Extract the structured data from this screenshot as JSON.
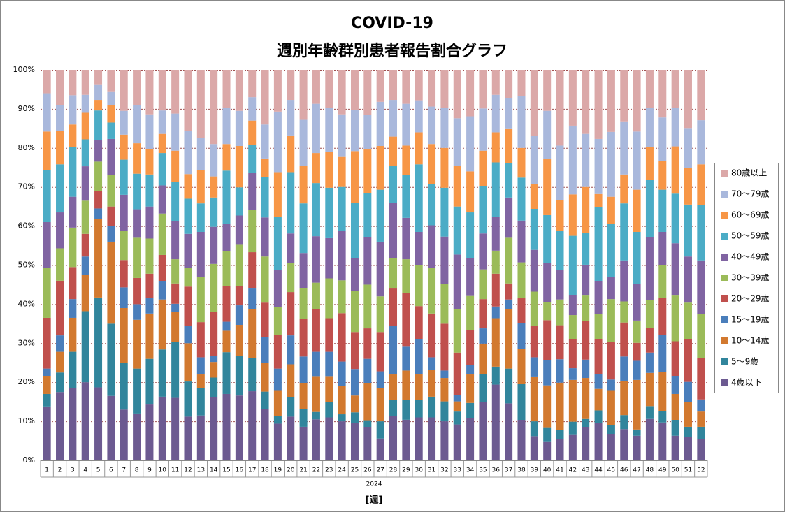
{
  "chart_data": {
    "type": "stacked_bar_percent",
    "title": "COVID-19",
    "subtitle": "週別年齢群別患者報告割合グラフ",
    "x_label": "[週]",
    "x_group_label": "2024",
    "categories": [
      "1",
      "2",
      "3",
      "4",
      "5",
      "6",
      "7",
      "8",
      "9",
      "10",
      "11",
      "12",
      "13",
      "14",
      "15",
      "16",
      "17",
      "18",
      "19",
      "20",
      "21",
      "22",
      "23",
      "24",
      "25",
      "26",
      "27",
      "28",
      "29",
      "30",
      "31",
      "32",
      "33",
      "34",
      "35",
      "36",
      "37",
      "38",
      "39",
      "40",
      "41",
      "42",
      "43",
      "44",
      "45",
      "46",
      "47",
      "48",
      "49",
      "50",
      "51",
      "52"
    ],
    "ylim": [
      0,
      100
    ],
    "yticks": [
      {
        "value": 0,
        "label": "0%"
      },
      {
        "value": 10,
        "label": "10%"
      },
      {
        "value": 20,
        "label": "20%"
      },
      {
        "value": 30,
        "label": "30%"
      },
      {
        "value": 40,
        "label": "40%"
      },
      {
        "value": 50,
        "label": "50%"
      },
      {
        "value": 60,
        "label": "60%"
      },
      {
        "value": 70,
        "label": "70%"
      },
      {
        "value": 80,
        "label": "80%"
      },
      {
        "value": 90,
        "label": "90%"
      },
      {
        "value": 100,
        "label": "100%"
      }
    ],
    "grid": true,
    "legend": "right",
    "series": [
      {
        "name": "4歳以下",
        "color": "#6c5a91",
        "values": [
          13.8,
          17.5,
          18.5,
          20,
          18.7,
          16.5,
          13,
          12,
          14.3,
          16.3,
          16,
          11.2,
          11.5,
          16.2,
          17,
          16.6,
          17.7,
          13.2,
          9.4,
          11.2,
          8.6,
          10.5,
          11,
          10,
          9.5,
          8.5,
          5.6,
          11.4,
          10.4,
          11,
          11,
          10,
          9.2,
          10.8,
          15,
          19.4,
          14.6,
          10.2,
          6.2,
          4.7,
          5.4,
          6.5,
          8.5,
          9.6,
          6.7,
          8,
          6.3,
          10.6,
          9.7,
          6.3,
          6,
          5.4
        ]
      },
      {
        "name": "5～9歳",
        "color": "#31859c",
        "values": [
          3.2,
          5,
          9.3,
          18.2,
          23,
          18.5,
          12,
          11.5,
          11.7,
          12.1,
          14.3,
          9,
          7,
          5,
          10.7,
          10.1,
          8.5,
          4.4,
          2,
          4.9,
          4.5,
          1.9,
          4,
          1.8,
          2.8,
          1.6,
          4.4,
          4.1,
          5,
          4.5,
          5.3,
          5.1,
          3.3,
          3.9,
          7.1,
          4.6,
          8.9,
          9.3,
          3.8,
          3.6,
          2.3,
          3.4,
          2.1,
          3.2,
          2.3,
          3.6,
          1.6,
          3.3,
          3,
          4,
          2.6,
          3.2
        ]
      },
      {
        "name": "10～14歳",
        "color": "#d2792f",
        "values": [
          4.5,
          5.3,
          8.7,
          9.3,
          20.1,
          21,
          14,
          12.5,
          11.6,
          12.8,
          7.8,
          9.8,
          3.5,
          4,
          5.5,
          8,
          12.6,
          7.4,
          6.4,
          8.5,
          6.7,
          9,
          6.4,
          7.3,
          4.3,
          9.7,
          8.6,
          6.5,
          7.6,
          6.5,
          6.8,
          6,
          2.6,
          7.3,
          7.8,
          12.4,
          15.2,
          9,
          11.3,
          10.9,
          12.2,
          10.7,
          10.5,
          5.5,
          8.8,
          8.8,
          12.7,
          8.5,
          10,
          6.7,
          6.3,
          3.9
        ]
      },
      {
        "name": "15～19歳",
        "color": "#4a7ebb",
        "values": [
          2,
          4.2,
          4.8,
          4.7,
          2.7,
          4,
          5.3,
          4,
          3.9,
          4.6,
          2,
          4.5,
          4.4,
          1.5,
          2.3,
          5,
          5.2,
          6.6,
          5.7,
          7.4,
          6.8,
          6.4,
          6.4,
          6.2,
          6.8,
          6.2,
          4.2,
          12.4,
          6.1,
          9,
          3.3,
          1.9,
          1.6,
          2.4,
          3.9,
          3,
          2.5,
          6.6,
          5.1,
          6.4,
          6,
          3,
          4.7,
          3.8,
          2.9,
          6.2,
          4.9,
          5.2,
          9.4,
          4.6,
          5.2,
          3.1
        ]
      },
      {
        "name": "20～29歳",
        "color": "#c0504d",
        "values": [
          13,
          14,
          8.2,
          5.8,
          4.5,
          5,
          7,
          6.7,
          6.3,
          6.8,
          5.2,
          10,
          9,
          11.3,
          9.1,
          5,
          9.3,
          8.8,
          8.7,
          11.1,
          9.6,
          10.9,
          8.6,
          12.4,
          9.3,
          7.8,
          9.9,
          9.6,
          13.7,
          8.5,
          11.2,
          12,
          10.9,
          8.9,
          7.5,
          8.4,
          4.1,
          6.4,
          8.1,
          10.3,
          8.7,
          7.5,
          9.8,
          8.9,
          9.7,
          8.7,
          4.6,
          6.3,
          9.5,
          8.9,
          11,
          10.6
        ]
      },
      {
        "name": "30～39歳",
        "color": "#9bbb59",
        "values": [
          12.8,
          8.3,
          10.1,
          8.5,
          7.5,
          8,
          7.5,
          10.3,
          9,
          10.6,
          6.2,
          4.7,
          11.6,
          12.3,
          8.9,
          10.5,
          10.9,
          11.8,
          7,
          7.5,
          7.9,
          6.8,
          10.2,
          8.4,
          10.7,
          11.2,
          9.3,
          7.7,
          8.7,
          10.5,
          11.6,
          10.2,
          11.1,
          8.8,
          7.6,
          5.9,
          11.7,
          9.2,
          8.7,
          4.7,
          6.6,
          6.1,
          6.6,
          6.5,
          10.9,
          5.4,
          5.7,
          7.1,
          8.4,
          11.7,
          9.3,
          11.3
        ]
      },
      {
        "name": "40～49歳",
        "color": "#8064a2",
        "values": [
          11.7,
          9.2,
          7.9,
          8.8,
          5.5,
          9.3,
          9.2,
          7.3,
          8.2,
          7.2,
          9.7,
          8.8,
          11.5,
          9.5,
          7.1,
          7.5,
          9.4,
          10,
          9.6,
          7.5,
          9,
          11.9,
          10.3,
          12.7,
          8.3,
          12.2,
          14,
          14.3,
          10.6,
          8.5,
          11,
          12.1,
          14,
          9.7,
          9.2,
          8.7,
          10.3,
          10.7,
          10.7,
          10,
          7.6,
          5.1,
          7.9,
          8.4,
          5.6,
          10.5,
          9.4,
          16.1,
          8.5,
          13.4,
          11.8,
          13.7
        ]
      },
      {
        "name": "50～59歳",
        "color": "#4bacc6",
        "values": [
          13.3,
          12.3,
          12.8,
          6.9,
          7.6,
          4.2,
          9,
          9.1,
          8.2,
          8.3,
          10,
          9,
          7.3,
          7.5,
          13.6,
          7.2,
          7.2,
          10.4,
          13.5,
          15.7,
          12.7,
          13.6,
          12.9,
          11.2,
          14.3,
          11.3,
          13.3,
          9.4,
          10.9,
          17.3,
          10.6,
          12.5,
          12.3,
          11.7,
          12.1,
          13.9,
          8.8,
          11,
          10.5,
          12.2,
          10,
          15.2,
          8.2,
          19,
          13.7,
          14.6,
          13.3,
          14.7,
          10.8,
          12.7,
          13.3,
          14.1
        ]
      },
      {
        "name": "60～69歳",
        "color": "#f79646",
        "values": [
          9.9,
          8.5,
          5.7,
          6.8,
          2.7,
          4.5,
          6.4,
          7.8,
          6.5,
          4.9,
          8.1,
          6.3,
          8.5,
          5.4,
          6.8,
          10.6,
          6.2,
          4.7,
          11.5,
          9.4,
          9.6,
          7.7,
          9.2,
          7.7,
          13.2,
          11.1,
          11.2,
          7.5,
          7.6,
          8.2,
          10.2,
          10.2,
          10.4,
          10.5,
          9.1,
          7.7,
          8.9,
          7.6,
          6.3,
          14.3,
          7.9,
          10.6,
          11.7,
          3.3,
          6.9,
          7.4,
          10.8,
          8.5,
          7.4,
          12.1,
          9.3,
          10.5
        ]
      },
      {
        "name": "70～79歳",
        "color": "#a9b8dc",
        "values": [
          9.8,
          6.7,
          7.5,
          4.6,
          4,
          3.5,
          6.1,
          9.8,
          8.9,
          6,
          9.5,
          11,
          8.2,
          8.3,
          9.2,
          9,
          6,
          8.7,
          15.5,
          9.1,
          11.8,
          12.6,
          11.2,
          10.9,
          10.6,
          8.9,
          11.3,
          9.4,
          10.7,
          8.2,
          9.6,
          10.3,
          12.2,
          14.1,
          10.8,
          9.6,
          7.7,
          13.2,
          12.4,
          12.4,
          13.9,
          17.6,
          13.6,
          14.1,
          16.6,
          13.6,
          14.9,
          9.9,
          11.1,
          9.8,
          10.3,
          11.3
        ]
      },
      {
        "name": "80歳以上",
        "color": "#dba8a8",
        "values": [
          6,
          9,
          6.5,
          6.4,
          3.7,
          5.5,
          10.5,
          9,
          11.4,
          10.4,
          11.2,
          15.7,
          17.5,
          19,
          9.8,
          10.5,
          7,
          14,
          10.7,
          7.7,
          12.8,
          8.7,
          9.8,
          11.4,
          10.2,
          11.5,
          8.2,
          7.7,
          8.7,
          7.8,
          9.4,
          9.7,
          12.4,
          11.9,
          9.9,
          6.4,
          7.3,
          6.8,
          16.9,
          10.5,
          19.4,
          14.3,
          16.4,
          17.7,
          15.9,
          13.2,
          15.8,
          9.8,
          12.2,
          9.8,
          14.9,
          12.9
        ]
      }
    ]
  }
}
